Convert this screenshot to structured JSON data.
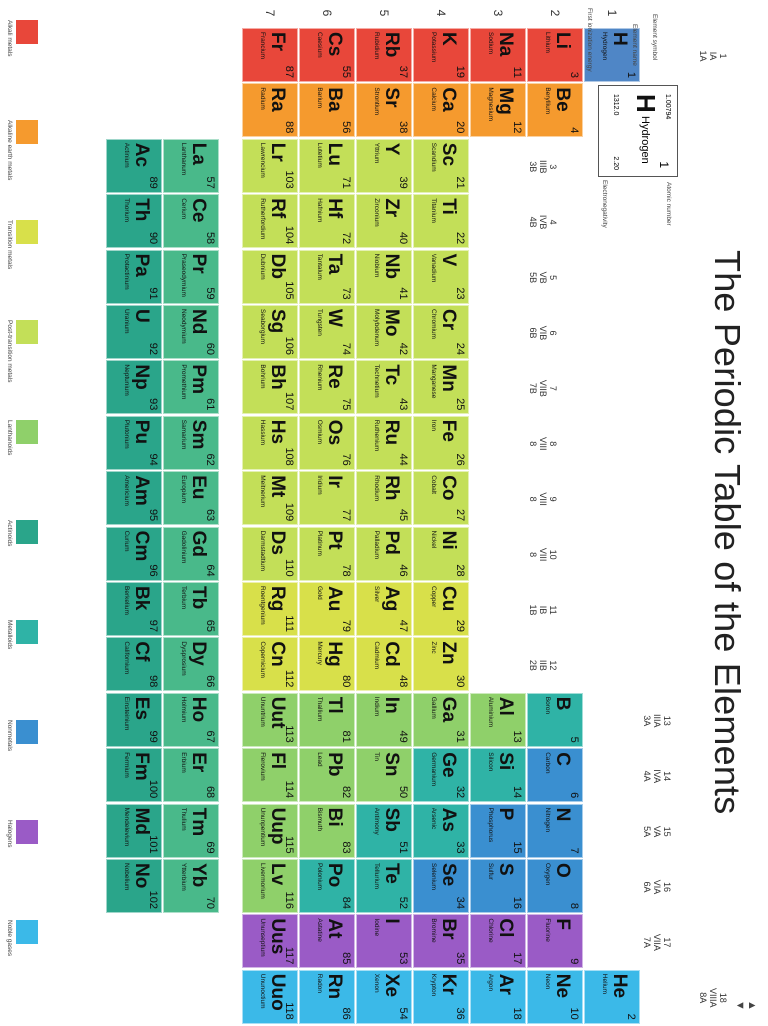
{
  "title": "The Periodic Table of the Elements",
  "groups": [
    {
      "n": "1",
      "a": "IA",
      "b": "1A"
    },
    {
      "n": "2",
      "a": "IIA",
      "b": "2A"
    },
    {
      "n": "3",
      "a": "IIIB",
      "b": "3B"
    },
    {
      "n": "4",
      "a": "IVB",
      "b": "4B"
    },
    {
      "n": "5",
      "a": "VB",
      "b": "5B"
    },
    {
      "n": "6",
      "a": "VIB",
      "b": "6B"
    },
    {
      "n": "7",
      "a": "VIIB",
      "b": "7B"
    },
    {
      "n": "8",
      "a": "VIII",
      "b": "8"
    },
    {
      "n": "9",
      "a": "VIII",
      "b": "8"
    },
    {
      "n": "10",
      "a": "VIII",
      "b": "8"
    },
    {
      "n": "11",
      "a": "IB",
      "b": "1B"
    },
    {
      "n": "12",
      "a": "IIB",
      "b": "2B"
    },
    {
      "n": "13",
      "a": "IIIA",
      "b": "3A"
    },
    {
      "n": "14",
      "a": "IVA",
      "b": "4A"
    },
    {
      "n": "15",
      "a": "VA",
      "b": "5A"
    },
    {
      "n": "16",
      "a": "VIA",
      "b": "6A"
    },
    {
      "n": "17",
      "a": "VIIA",
      "b": "7A"
    },
    {
      "n": "18",
      "a": "VIIIA",
      "b": "8A"
    }
  ],
  "periods": [
    "1",
    "2",
    "3",
    "4",
    "5",
    "6",
    "7"
  ],
  "colors": {
    "alkali": "#e8473a",
    "alkaline": "#f59a2e",
    "transition": "#c3df58",
    "transition_hi": "#d8e04a",
    "post_transition": "#8fd06a",
    "metalloid": "#2fb3a6",
    "nonmetal": "#3a8fd0",
    "halogen": "#9a5bc6",
    "noble": "#3bb9e8",
    "lanthanide": "#49b98a",
    "actinide": "#2aa58a",
    "hydrogen": "#4f86c6"
  },
  "elements": [
    {
      "z": 1,
      "s": "H",
      "n": "Hydrogen",
      "g": 1,
      "p": 1,
      "c": "hydrogen"
    },
    {
      "z": 2,
      "s": "He",
      "n": "Helium",
      "g": 18,
      "p": 1,
      "c": "noble"
    },
    {
      "z": 3,
      "s": "Li",
      "n": "Lithium",
      "g": 1,
      "p": 2,
      "c": "alkali"
    },
    {
      "z": 4,
      "s": "Be",
      "n": "Beryllium",
      "g": 2,
      "p": 2,
      "c": "alkaline"
    },
    {
      "z": 5,
      "s": "B",
      "n": "Boron",
      "g": 13,
      "p": 2,
      "c": "metalloid"
    },
    {
      "z": 6,
      "s": "C",
      "n": "Carbon",
      "g": 14,
      "p": 2,
      "c": "nonmetal"
    },
    {
      "z": 7,
      "s": "N",
      "n": "Nitrogen",
      "g": 15,
      "p": 2,
      "c": "nonmetal"
    },
    {
      "z": 8,
      "s": "O",
      "n": "Oxygen",
      "g": 16,
      "p": 2,
      "c": "nonmetal"
    },
    {
      "z": 9,
      "s": "F",
      "n": "Fluorine",
      "g": 17,
      "p": 2,
      "c": "halogen"
    },
    {
      "z": 10,
      "s": "Ne",
      "n": "Neon",
      "g": 18,
      "p": 2,
      "c": "noble"
    },
    {
      "z": 11,
      "s": "Na",
      "n": "Sodium",
      "g": 1,
      "p": 3,
      "c": "alkali"
    },
    {
      "z": 12,
      "s": "Mg",
      "n": "Magnesium",
      "g": 2,
      "p": 3,
      "c": "alkaline"
    },
    {
      "z": 13,
      "s": "Al",
      "n": "Aluminium",
      "g": 13,
      "p": 3,
      "c": "post_transition"
    },
    {
      "z": 14,
      "s": "Si",
      "n": "Silicon",
      "g": 14,
      "p": 3,
      "c": "metalloid"
    },
    {
      "z": 15,
      "s": "P",
      "n": "Phosphorus",
      "g": 15,
      "p": 3,
      "c": "nonmetal"
    },
    {
      "z": 16,
      "s": "S",
      "n": "Sulfur",
      "g": 16,
      "p": 3,
      "c": "nonmetal"
    },
    {
      "z": 17,
      "s": "Cl",
      "n": "Chlorine",
      "g": 17,
      "p": 3,
      "c": "halogen"
    },
    {
      "z": 18,
      "s": "Ar",
      "n": "Argon",
      "g": 18,
      "p": 3,
      "c": "noble"
    },
    {
      "z": 19,
      "s": "K",
      "n": "Potassium",
      "g": 1,
      "p": 4,
      "c": "alkali"
    },
    {
      "z": 20,
      "s": "Ca",
      "n": "Calcium",
      "g": 2,
      "p": 4,
      "c": "alkaline"
    },
    {
      "z": 21,
      "s": "Sc",
      "n": "Scandium",
      "g": 3,
      "p": 4,
      "c": "transition"
    },
    {
      "z": 22,
      "s": "Ti",
      "n": "Titanium",
      "g": 4,
      "p": 4,
      "c": "transition"
    },
    {
      "z": 23,
      "s": "V",
      "n": "Vanadium",
      "g": 5,
      "p": 4,
      "c": "transition"
    },
    {
      "z": 24,
      "s": "Cr",
      "n": "Chromium",
      "g": 6,
      "p": 4,
      "c": "transition"
    },
    {
      "z": 25,
      "s": "Mn",
      "n": "Manganese",
      "g": 7,
      "p": 4,
      "c": "transition"
    },
    {
      "z": 26,
      "s": "Fe",
      "n": "Iron",
      "g": 8,
      "p": 4,
      "c": "transition"
    },
    {
      "z": 27,
      "s": "Co",
      "n": "Cobalt",
      "g": 9,
      "p": 4,
      "c": "transition"
    },
    {
      "z": 28,
      "s": "Ni",
      "n": "Nickel",
      "g": 10,
      "p": 4,
      "c": "transition"
    },
    {
      "z": 29,
      "s": "Cu",
      "n": "Copper",
      "g": 11,
      "p": 4,
      "c": "transition_hi"
    },
    {
      "z": 30,
      "s": "Zn",
      "n": "Zinc",
      "g": 12,
      "p": 4,
      "c": "transition_hi"
    },
    {
      "z": 31,
      "s": "Ga",
      "n": "Gallium",
      "g": 13,
      "p": 4,
      "c": "post_transition"
    },
    {
      "z": 32,
      "s": "Ge",
      "n": "Germanium",
      "g": 14,
      "p": 4,
      "c": "metalloid"
    },
    {
      "z": 33,
      "s": "As",
      "n": "Arsenic",
      "g": 15,
      "p": 4,
      "c": "metalloid"
    },
    {
      "z": 34,
      "s": "Se",
      "n": "Selenium",
      "g": 16,
      "p": 4,
      "c": "nonmetal"
    },
    {
      "z": 35,
      "s": "Br",
      "n": "Bromine",
      "g": 17,
      "p": 4,
      "c": "halogen"
    },
    {
      "z": 36,
      "s": "Kr",
      "n": "Krypton",
      "g": 18,
      "p": 4,
      "c": "noble"
    },
    {
      "z": 37,
      "s": "Rb",
      "n": "Rubidium",
      "g": 1,
      "p": 5,
      "c": "alkali"
    },
    {
      "z": 38,
      "s": "Sr",
      "n": "Strontium",
      "g": 2,
      "p": 5,
      "c": "alkaline"
    },
    {
      "z": 39,
      "s": "Y",
      "n": "Yttrium",
      "g": 3,
      "p": 5,
      "c": "transition"
    },
    {
      "z": 40,
      "s": "Zr",
      "n": "Zirconium",
      "g": 4,
      "p": 5,
      "c": "transition"
    },
    {
      "z": 41,
      "s": "Nb",
      "n": "Niobium",
      "g": 5,
      "p": 5,
      "c": "transition"
    },
    {
      "z": 42,
      "s": "Mo",
      "n": "Molybdenum",
      "g": 6,
      "p": 5,
      "c": "transition"
    },
    {
      "z": 43,
      "s": "Tc",
      "n": "Technetium",
      "g": 7,
      "p": 5,
      "c": "transition"
    },
    {
      "z": 44,
      "s": "Ru",
      "n": "Ruthenium",
      "g": 8,
      "p": 5,
      "c": "transition"
    },
    {
      "z": 45,
      "s": "Rh",
      "n": "Rhodium",
      "g": 9,
      "p": 5,
      "c": "transition"
    },
    {
      "z": 46,
      "s": "Pd",
      "n": "Palladium",
      "g": 10,
      "p": 5,
      "c": "transition"
    },
    {
      "z": 47,
      "s": "Ag",
      "n": "Silver",
      "g": 11,
      "p": 5,
      "c": "transition_hi"
    },
    {
      "z": 48,
      "s": "Cd",
      "n": "Cadmium",
      "g": 12,
      "p": 5,
      "c": "transition_hi"
    },
    {
      "z": 49,
      "s": "In",
      "n": "Indium",
      "g": 13,
      "p": 5,
      "c": "post_transition"
    },
    {
      "z": 50,
      "s": "Sn",
      "n": "Tin",
      "g": 14,
      "p": 5,
      "c": "post_transition"
    },
    {
      "z": 51,
      "s": "Sb",
      "n": "Antimony",
      "g": 15,
      "p": 5,
      "c": "metalloid"
    },
    {
      "z": 52,
      "s": "Te",
      "n": "Tellurium",
      "g": 16,
      "p": 5,
      "c": "metalloid"
    },
    {
      "z": 53,
      "s": "I",
      "n": "Iodine",
      "g": 17,
      "p": 5,
      "c": "halogen"
    },
    {
      "z": 54,
      "s": "Xe",
      "n": "Xenon",
      "g": 18,
      "p": 5,
      "c": "noble"
    },
    {
      "z": 55,
      "s": "Cs",
      "n": "Caesium",
      "g": 1,
      "p": 6,
      "c": "alkali"
    },
    {
      "z": 56,
      "s": "Ba",
      "n": "Barium",
      "g": 2,
      "p": 6,
      "c": "alkaline"
    },
    {
      "z": 71,
      "s": "Lu",
      "n": "Lutetium",
      "g": 3,
      "p": 6,
      "c": "transition"
    },
    {
      "z": 72,
      "s": "Hf",
      "n": "Hafnium",
      "g": 4,
      "p": 6,
      "c": "transition"
    },
    {
      "z": 73,
      "s": "Ta",
      "n": "Tantalum",
      "g": 5,
      "p": 6,
      "c": "transition"
    },
    {
      "z": 74,
      "s": "W",
      "n": "Tungsten",
      "g": 6,
      "p": 6,
      "c": "transition"
    },
    {
      "z": 75,
      "s": "Re",
      "n": "Rhenium",
      "g": 7,
      "p": 6,
      "c": "transition"
    },
    {
      "z": 76,
      "s": "Os",
      "n": "Osmium",
      "g": 8,
      "p": 6,
      "c": "transition"
    },
    {
      "z": 77,
      "s": "Ir",
      "n": "Iridium",
      "g": 9,
      "p": 6,
      "c": "transition"
    },
    {
      "z": 78,
      "s": "Pt",
      "n": "Platinum",
      "g": 10,
      "p": 6,
      "c": "transition"
    },
    {
      "z": 79,
      "s": "Au",
      "n": "Gold",
      "g": 11,
      "p": 6,
      "c": "transition_hi"
    },
    {
      "z": 80,
      "s": "Hg",
      "n": "Mercury",
      "g": 12,
      "p": 6,
      "c": "transition_hi"
    },
    {
      "z": 81,
      "s": "Tl",
      "n": "Thallium",
      "g": 13,
      "p": 6,
      "c": "post_transition"
    },
    {
      "z": 82,
      "s": "Pb",
      "n": "Lead",
      "g": 14,
      "p": 6,
      "c": "post_transition"
    },
    {
      "z": 83,
      "s": "Bi",
      "n": "Bismuth",
      "g": 15,
      "p": 6,
      "c": "post_transition"
    },
    {
      "z": 84,
      "s": "Po",
      "n": "Polonium",
      "g": 16,
      "p": 6,
      "c": "metalloid"
    },
    {
      "z": 85,
      "s": "At",
      "n": "Astatine",
      "g": 17,
      "p": 6,
      "c": "halogen"
    },
    {
      "z": 86,
      "s": "Rn",
      "n": "Radon",
      "g": 18,
      "p": 6,
      "c": "noble"
    },
    {
      "z": 87,
      "s": "Fr",
      "n": "Francium",
      "g": 1,
      "p": 7,
      "c": "alkali"
    },
    {
      "z": 88,
      "s": "Ra",
      "n": "Radium",
      "g": 2,
      "p": 7,
      "c": "alkaline"
    },
    {
      "z": 103,
      "s": "Lr",
      "n": "Lawrencium",
      "g": 3,
      "p": 7,
      "c": "transition"
    },
    {
      "z": 104,
      "s": "Rf",
      "n": "Rutherfordium",
      "g": 4,
      "p": 7,
      "c": "transition"
    },
    {
      "z": 105,
      "s": "Db",
      "n": "Dubnium",
      "g": 5,
      "p": 7,
      "c": "transition"
    },
    {
      "z": 106,
      "s": "Sg",
      "n": "Seaborgium",
      "g": 6,
      "p": 7,
      "c": "transition"
    },
    {
      "z": 107,
      "s": "Bh",
      "n": "Bohrium",
      "g": 7,
      "p": 7,
      "c": "transition"
    },
    {
      "z": 108,
      "s": "Hs",
      "n": "Hassium",
      "g": 8,
      "p": 7,
      "c": "transition"
    },
    {
      "z": 109,
      "s": "Mt",
      "n": "Meitnerium",
      "g": 9,
      "p": 7,
      "c": "transition"
    },
    {
      "z": 110,
      "s": "Ds",
      "n": "Darmstadtium",
      "g": 10,
      "p": 7,
      "c": "transition"
    },
    {
      "z": 111,
      "s": "Rg",
      "n": "Roentgenium",
      "g": 11,
      "p": 7,
      "c": "transition_hi"
    },
    {
      "z": 112,
      "s": "Cn",
      "n": "Copernicium",
      "g": 12,
      "p": 7,
      "c": "transition_hi"
    },
    {
      "z": 113,
      "s": "Uut",
      "n": "Ununtrium",
      "g": 13,
      "p": 7,
      "c": "post_transition"
    },
    {
      "z": 114,
      "s": "Fl",
      "n": "Flerovium",
      "g": 14,
      "p": 7,
      "c": "post_transition"
    },
    {
      "z": 115,
      "s": "Uup",
      "n": "Ununpentium",
      "g": 15,
      "p": 7,
      "c": "post_transition"
    },
    {
      "z": 116,
      "s": "Lv",
      "n": "Livermorium",
      "g": 16,
      "p": 7,
      "c": "post_transition"
    },
    {
      "z": 117,
      "s": "Uus",
      "n": "Ununseptium",
      "g": 17,
      "p": 7,
      "c": "halogen"
    },
    {
      "z": 118,
      "s": "Uuo",
      "n": "Ununoctium",
      "g": 18,
      "p": 7,
      "c": "noble"
    }
  ],
  "lanthanides": [
    {
      "z": 57,
      "s": "La",
      "n": "Lanthanum"
    },
    {
      "z": 58,
      "s": "Ce",
      "n": "Cerium"
    },
    {
      "z": 59,
      "s": "Pr",
      "n": "Praseodymium"
    },
    {
      "z": 60,
      "s": "Nd",
      "n": "Neodymium"
    },
    {
      "z": 61,
      "s": "Pm",
      "n": "Promethium"
    },
    {
      "z": 62,
      "s": "Sm",
      "n": "Samarium"
    },
    {
      "z": 63,
      "s": "Eu",
      "n": "Europium"
    },
    {
      "z": 64,
      "s": "Gd",
      "n": "Gadolinium"
    },
    {
      "z": 65,
      "s": "Tb",
      "n": "Terbium"
    },
    {
      "z": 66,
      "s": "Dy",
      "n": "Dysprosium"
    },
    {
      "z": 67,
      "s": "Ho",
      "n": "Holmium"
    },
    {
      "z": 68,
      "s": "Er",
      "n": "Erbium"
    },
    {
      "z": 69,
      "s": "Tm",
      "n": "Thulium"
    },
    {
      "z": 70,
      "s": "Yb",
      "n": "Ytterbium"
    }
  ],
  "actinides": [
    {
      "z": 89,
      "s": "Ac",
      "n": "Actinium"
    },
    {
      "z": 90,
      "s": "Th",
      "n": "Thorium"
    },
    {
      "z": 91,
      "s": "Pa",
      "n": "Protactinium"
    },
    {
      "z": 92,
      "s": "U",
      "n": "Uranium"
    },
    {
      "z": 93,
      "s": "Np",
      "n": "Neptunium"
    },
    {
      "z": 94,
      "s": "Pu",
      "n": "Plutonium"
    },
    {
      "z": 95,
      "s": "Am",
      "n": "Americium"
    },
    {
      "z": 96,
      "s": "Cm",
      "n": "Curium"
    },
    {
      "z": 97,
      "s": "Bk",
      "n": "Berkelium"
    },
    {
      "z": 98,
      "s": "Cf",
      "n": "Californium"
    },
    {
      "z": 99,
      "s": "Es",
      "n": "Einsteinium"
    },
    {
      "z": 100,
      "s": "Fm",
      "n": "Fermium"
    },
    {
      "z": 101,
      "s": "Md",
      "n": "Mendelevium"
    },
    {
      "z": 102,
      "s": "No",
      "n": "Nobelium"
    }
  ],
  "key": {
    "symbol": "H",
    "number": "1",
    "weight": "1.00794",
    "name": "Hydrogen",
    "ionization": "1312.0",
    "electronegativity": "2.20",
    "label_number": "Atomic number",
    "label_symbol": "Element symbol",
    "label_name": "Element name",
    "label_ion": "First ionization energy",
    "label_neg": "Electronegativity"
  },
  "legend": [
    {
      "label": "Alkali metals",
      "c": "alkali"
    },
    {
      "label": "Alkaline earth metals",
      "c": "alkaline"
    },
    {
      "label": "Transition metals",
      "c": "transition_hi"
    },
    {
      "label": "Post-transition metals",
      "c": "transition"
    },
    {
      "label": "Lanthanoids",
      "c": "post_transition"
    },
    {
      "label": "Actinoids",
      "c": "actinide"
    },
    {
      "label": "Metalloids",
      "c": "metalloid"
    },
    {
      "label": "Nonmetals",
      "c": "nonmetal"
    },
    {
      "label": "Halogens",
      "c": "halogen"
    },
    {
      "label": "Noble gases",
      "c": "noble"
    }
  ]
}
